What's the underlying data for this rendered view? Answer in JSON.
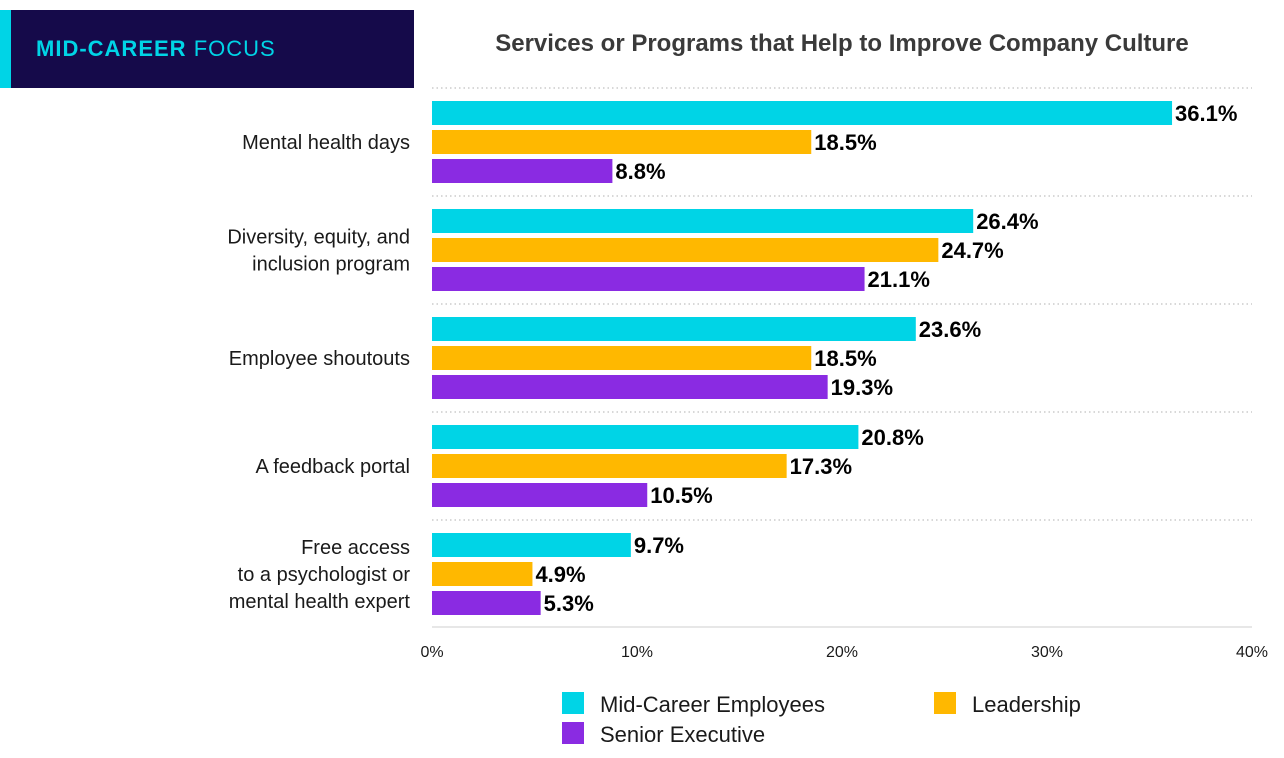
{
  "badge": {
    "bold": "MID-CAREER",
    "light": "FOCUS"
  },
  "colors": {
    "badge_bg": "#150a4a",
    "accent": "#00d4e6"
  },
  "chart_data": {
    "type": "bar",
    "orientation": "horizontal",
    "title": "Services or Programs that Help to Improve Company Culture",
    "categories": [
      [
        "Mental health days"
      ],
      [
        "Diversity, equity, and",
        "inclusion program"
      ],
      [
        "Employee shoutouts"
      ],
      [
        "A feedback portal"
      ],
      [
        "Free access",
        "to a psychologist or",
        "mental health expert"
      ]
    ],
    "series": [
      {
        "name": "Mid-Career Employees",
        "color": "#00d4e6",
        "values": [
          36.1,
          26.4,
          23.6,
          20.8,
          9.7
        ]
      },
      {
        "name": "Leadership",
        "color": "#ffb800",
        "values": [
          18.5,
          24.7,
          18.5,
          17.3,
          4.9
        ]
      },
      {
        "name": "Senior Executive",
        "color": "#8a2be2",
        "values": [
          8.8,
          21.1,
          19.3,
          10.5,
          5.3
        ]
      }
    ],
    "value_suffix": "%",
    "xlim": [
      0,
      40
    ],
    "xticks": [
      "0%",
      "10%",
      "20%",
      "30%",
      "40%"
    ],
    "grid": "dotted horizontal separators",
    "legend_position": "bottom"
  }
}
